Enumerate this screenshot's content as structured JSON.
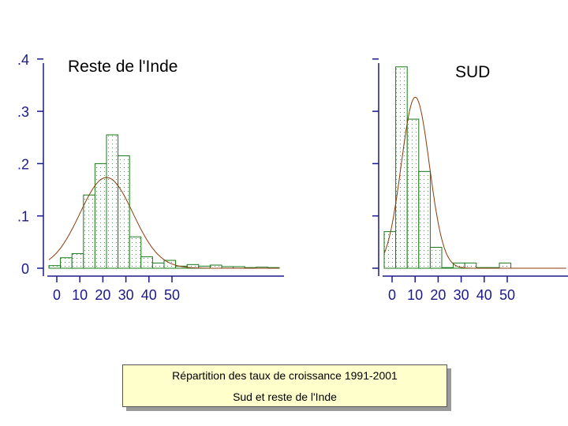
{
  "caption": {
    "line1": "Répartition des taux de croissance 1991-2001",
    "line2": "Sud et reste de l'Inde"
  },
  "colors": {
    "bar_edge": "#1a7a1a",
    "bar_fill": "#ffffff",
    "bar_dots": "#2a7a2a",
    "density_curve": "#8b3a0a",
    "axis": "#1a1a8c",
    "caption_bg": "#ffffcc"
  },
  "chart_data": [
    {
      "type": "bar",
      "title": "Reste de l'Inde",
      "bin_width": 5,
      "bin_starts": [
        0,
        5,
        10,
        15,
        20,
        25,
        30,
        35,
        40,
        45,
        50,
        55,
        60,
        65,
        70,
        75,
        80,
        85,
        90,
        95
      ],
      "values": [
        0.005,
        0.02,
        0.028,
        0.14,
        0.2,
        0.255,
        0.215,
        0.06,
        0.022,
        0.01,
        0.015,
        0.004,
        0.007,
        0.004,
        0.006,
        0.003,
        0.003,
        0,
        0.002,
        0
      ],
      "density_curve": {
        "type": "normal",
        "mean": 25,
        "sd": 11.5
      },
      "xticks": [
        "0",
        "10",
        "20",
        "30",
        "40",
        "50"
      ],
      "yticks": [
        "0",
        ".1",
        ".2",
        ".3",
        ".4"
      ],
      "ylim": [
        0,
        0.4
      ],
      "grid": false
    },
    {
      "type": "bar",
      "title": "SUD",
      "bin_width": 5,
      "bin_starts": [
        0,
        5,
        10,
        15,
        20,
        25,
        30,
        35,
        40,
        45,
        50
      ],
      "values": [
        0.07,
        0.385,
        0.285,
        0.185,
        0.04,
        0,
        0.01,
        0.01,
        0,
        0,
        0.01
      ],
      "density_curve": {
        "type": "normal",
        "mean": 13.5,
        "sd": 6.1
      },
      "xticks": [
        "0",
        "10",
        "20",
        "30",
        "40",
        "50"
      ],
      "yticks": [],
      "ylim": [
        0,
        0.4
      ],
      "grid": false
    }
  ]
}
